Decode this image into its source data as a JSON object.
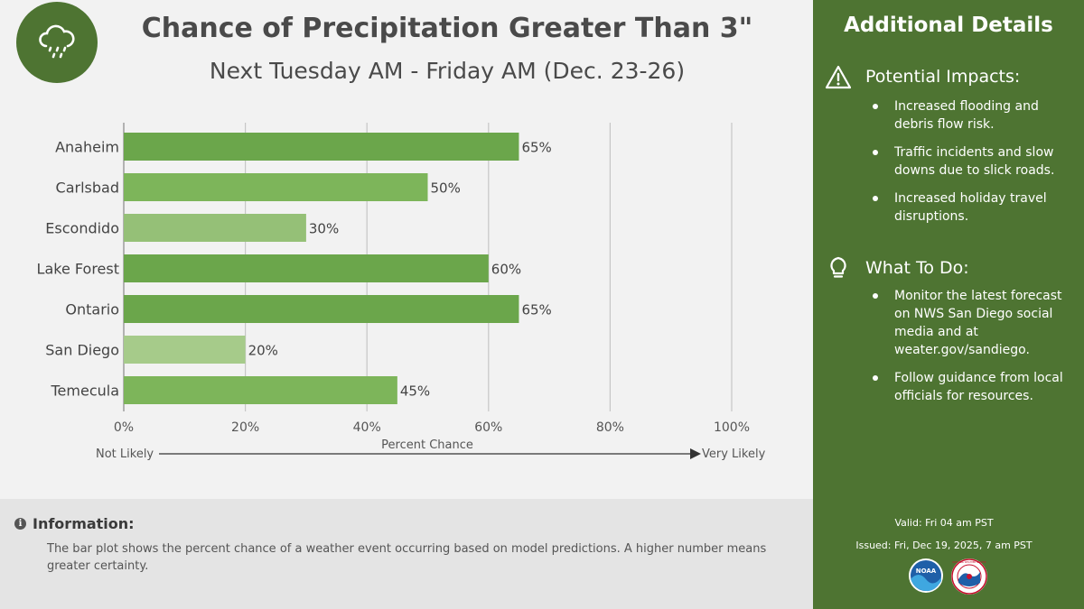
{
  "header": {
    "title": "Chance of Precipitation Greater Than 3\"",
    "subtitle": "Next Tuesday AM - Friday AM (Dec. 23-26)",
    "icon": "rain-cloud-icon"
  },
  "chart_data": {
    "type": "bar",
    "orientation": "horizontal",
    "categories": [
      "Anaheim",
      "Carlsbad",
      "Escondido",
      "Lake Forest",
      "Ontario",
      "San Diego",
      "Temecula"
    ],
    "values": [
      65,
      50,
      30,
      60,
      65,
      20,
      45
    ],
    "value_labels": [
      "65%",
      "50%",
      "30%",
      "60%",
      "65%",
      "20%",
      "45%"
    ],
    "xlim": [
      0,
      100
    ],
    "xticks": [
      0,
      20,
      40,
      60,
      80,
      100
    ],
    "xtick_labels": [
      "0%",
      "20%",
      "40%",
      "60%",
      "80%",
      "100%"
    ],
    "xlabel": "Percent Chance",
    "scale_left_label": "Not Likely",
    "scale_right_label": "Very Likely",
    "grid": true,
    "colors": {
      "high": "#6ba64b",
      "mid": "#7db55a",
      "low": "#95c077",
      "lowest": "#a6cb8a"
    }
  },
  "info": {
    "heading": "Information:",
    "text": "The bar plot shows the percent chance of a weather event occurring based on model predictions. A higher number means greater certainty."
  },
  "side": {
    "title": "Additional Details",
    "impacts": {
      "heading": "Potential Impacts:",
      "icon": "warning-icon",
      "items": [
        "Increased flooding and debris flow risk.",
        "Traffic incidents and slow downs due to slick roads.",
        "Increased holiday travel disruptions."
      ]
    },
    "todo": {
      "heading": "What To Do:",
      "icon": "lightbulb-icon",
      "items": [
        "Monitor the latest forecast on NWS San Diego social media and at weater.gov/sandiego.",
        "Follow guidance from local officials for resources."
      ]
    },
    "valid": "Valid: Fri 04 am PST",
    "issued": "Issued: Fri, Dec 19, 2025, 7 am PST",
    "noaa_label": "NOAA",
    "nws_label": "NATIONAL WEATHER SERVICE"
  },
  "colors": {
    "accent": "#4e7432",
    "background": "#f2f2f2",
    "info_bg": "#e4e4e4"
  }
}
